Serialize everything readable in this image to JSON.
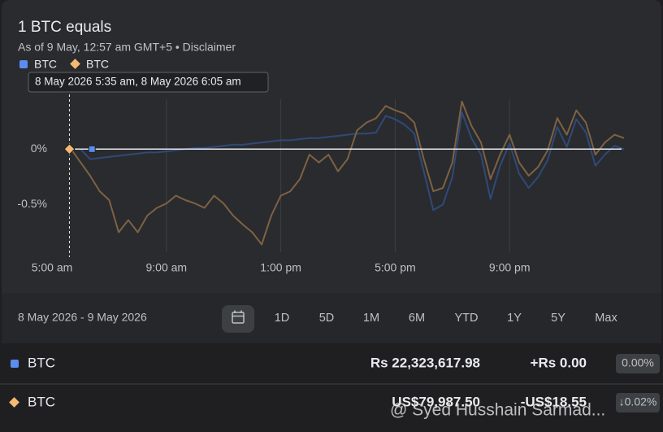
{
  "header": {
    "title": "1 BTC equals",
    "subtitle": "As of 9 May, 12:57 am GMT+5 • Disclaimer"
  },
  "tooltip": "8 May 2026 5:35 am, 8 May 2026 6:05 am",
  "chart_data": {
    "type": "line",
    "categories": [
      "5:00 am",
      null,
      null,
      null,
      null,
      null,
      null,
      null,
      null,
      null,
      null,
      null,
      "9:00 am",
      null,
      null,
      null,
      null,
      null,
      null,
      null,
      null,
      null,
      null,
      null,
      "1:00 pm",
      null,
      null,
      null,
      null,
      null,
      null,
      null,
      null,
      null,
      null,
      null,
      "5:00 pm",
      null,
      null,
      null,
      null,
      null,
      null,
      null,
      null,
      null,
      null,
      null,
      "9:00 pm",
      null,
      null,
      null,
      null,
      null,
      null,
      null,
      null,
      null,
      null,
      null,
      null
    ],
    "series": [
      {
        "name": "BTC",
        "color": "#2f4a78",
        "marker_color": "#5b8def",
        "values": [
          null,
          null,
          null,
          0,
          -0.09,
          -0.08,
          -0.07,
          -0.06,
          -0.05,
          -0.04,
          -0.03,
          -0.03,
          -0.02,
          -0.01,
          0,
          0.01,
          0.01,
          0.02,
          0.03,
          0.04,
          0.04,
          0.05,
          0.06,
          0.07,
          0.08,
          0.08,
          0.09,
          0.1,
          0.1,
          0.11,
          0.12,
          0.13,
          0.14,
          0.14,
          0.15,
          0.3,
          0.27,
          0.22,
          0.14,
          -0.2,
          -0.55,
          -0.5,
          -0.25,
          0.33,
          0.1,
          -0.05,
          -0.45,
          -0.15,
          0.05,
          -0.22,
          -0.35,
          -0.25,
          -0.1,
          0.2,
          0.02,
          0.27,
          0.15,
          -0.15,
          -0.05,
          0.03,
          0
        ]
      },
      {
        "name": "BTC",
        "color": "#7d6242",
        "marker_color": "#f5b971",
        "values": [
          null,
          null,
          0,
          -0.12,
          -0.24,
          -0.38,
          -0.46,
          -0.75,
          -0.64,
          -0.75,
          -0.6,
          -0.53,
          -0.49,
          -0.42,
          -0.46,
          -0.49,
          -0.53,
          -0.42,
          -0.49,
          -0.6,
          -0.68,
          -0.75,
          -0.86,
          -0.6,
          -0.42,
          -0.38,
          -0.27,
          -0.05,
          -0.12,
          -0.05,
          -0.2,
          -0.09,
          0.17,
          0.24,
          0.28,
          0.39,
          0.35,
          0.32,
          0.24,
          -0.09,
          -0.38,
          -0.35,
          -0.12,
          0.43,
          0.21,
          0.06,
          -0.27,
          -0.05,
          0.13,
          -0.12,
          -0.24,
          -0.16,
          -0.01,
          0.28,
          0.13,
          0.35,
          0.24,
          -0.05,
          0.06,
          0.13,
          0.1
        ]
      }
    ],
    "ylim": [
      -0.93,
      0.45
    ],
    "yticks": [
      {
        "value": 0,
        "label": "0%"
      },
      {
        "value": -0.5,
        "label": "-0.5%"
      }
    ],
    "baseline": true
  },
  "range": {
    "label": "8 May 2026 - 9 May 2026",
    "buttons": [
      "1D",
      "5D",
      "1M",
      "6M",
      "YTD",
      "1Y",
      "5Y",
      "Max"
    ]
  },
  "table": {
    "rows": [
      [
        "BTC",
        "Rs 22,323,617.98",
        "+Rs 0.00",
        "0.00%"
      ],
      [
        "BTC",
        "US$79,987.50",
        "-US$18.55",
        "↓0.02%"
      ]
    ]
  },
  "watermark": "@ Syed Husshain Sarmad..."
}
